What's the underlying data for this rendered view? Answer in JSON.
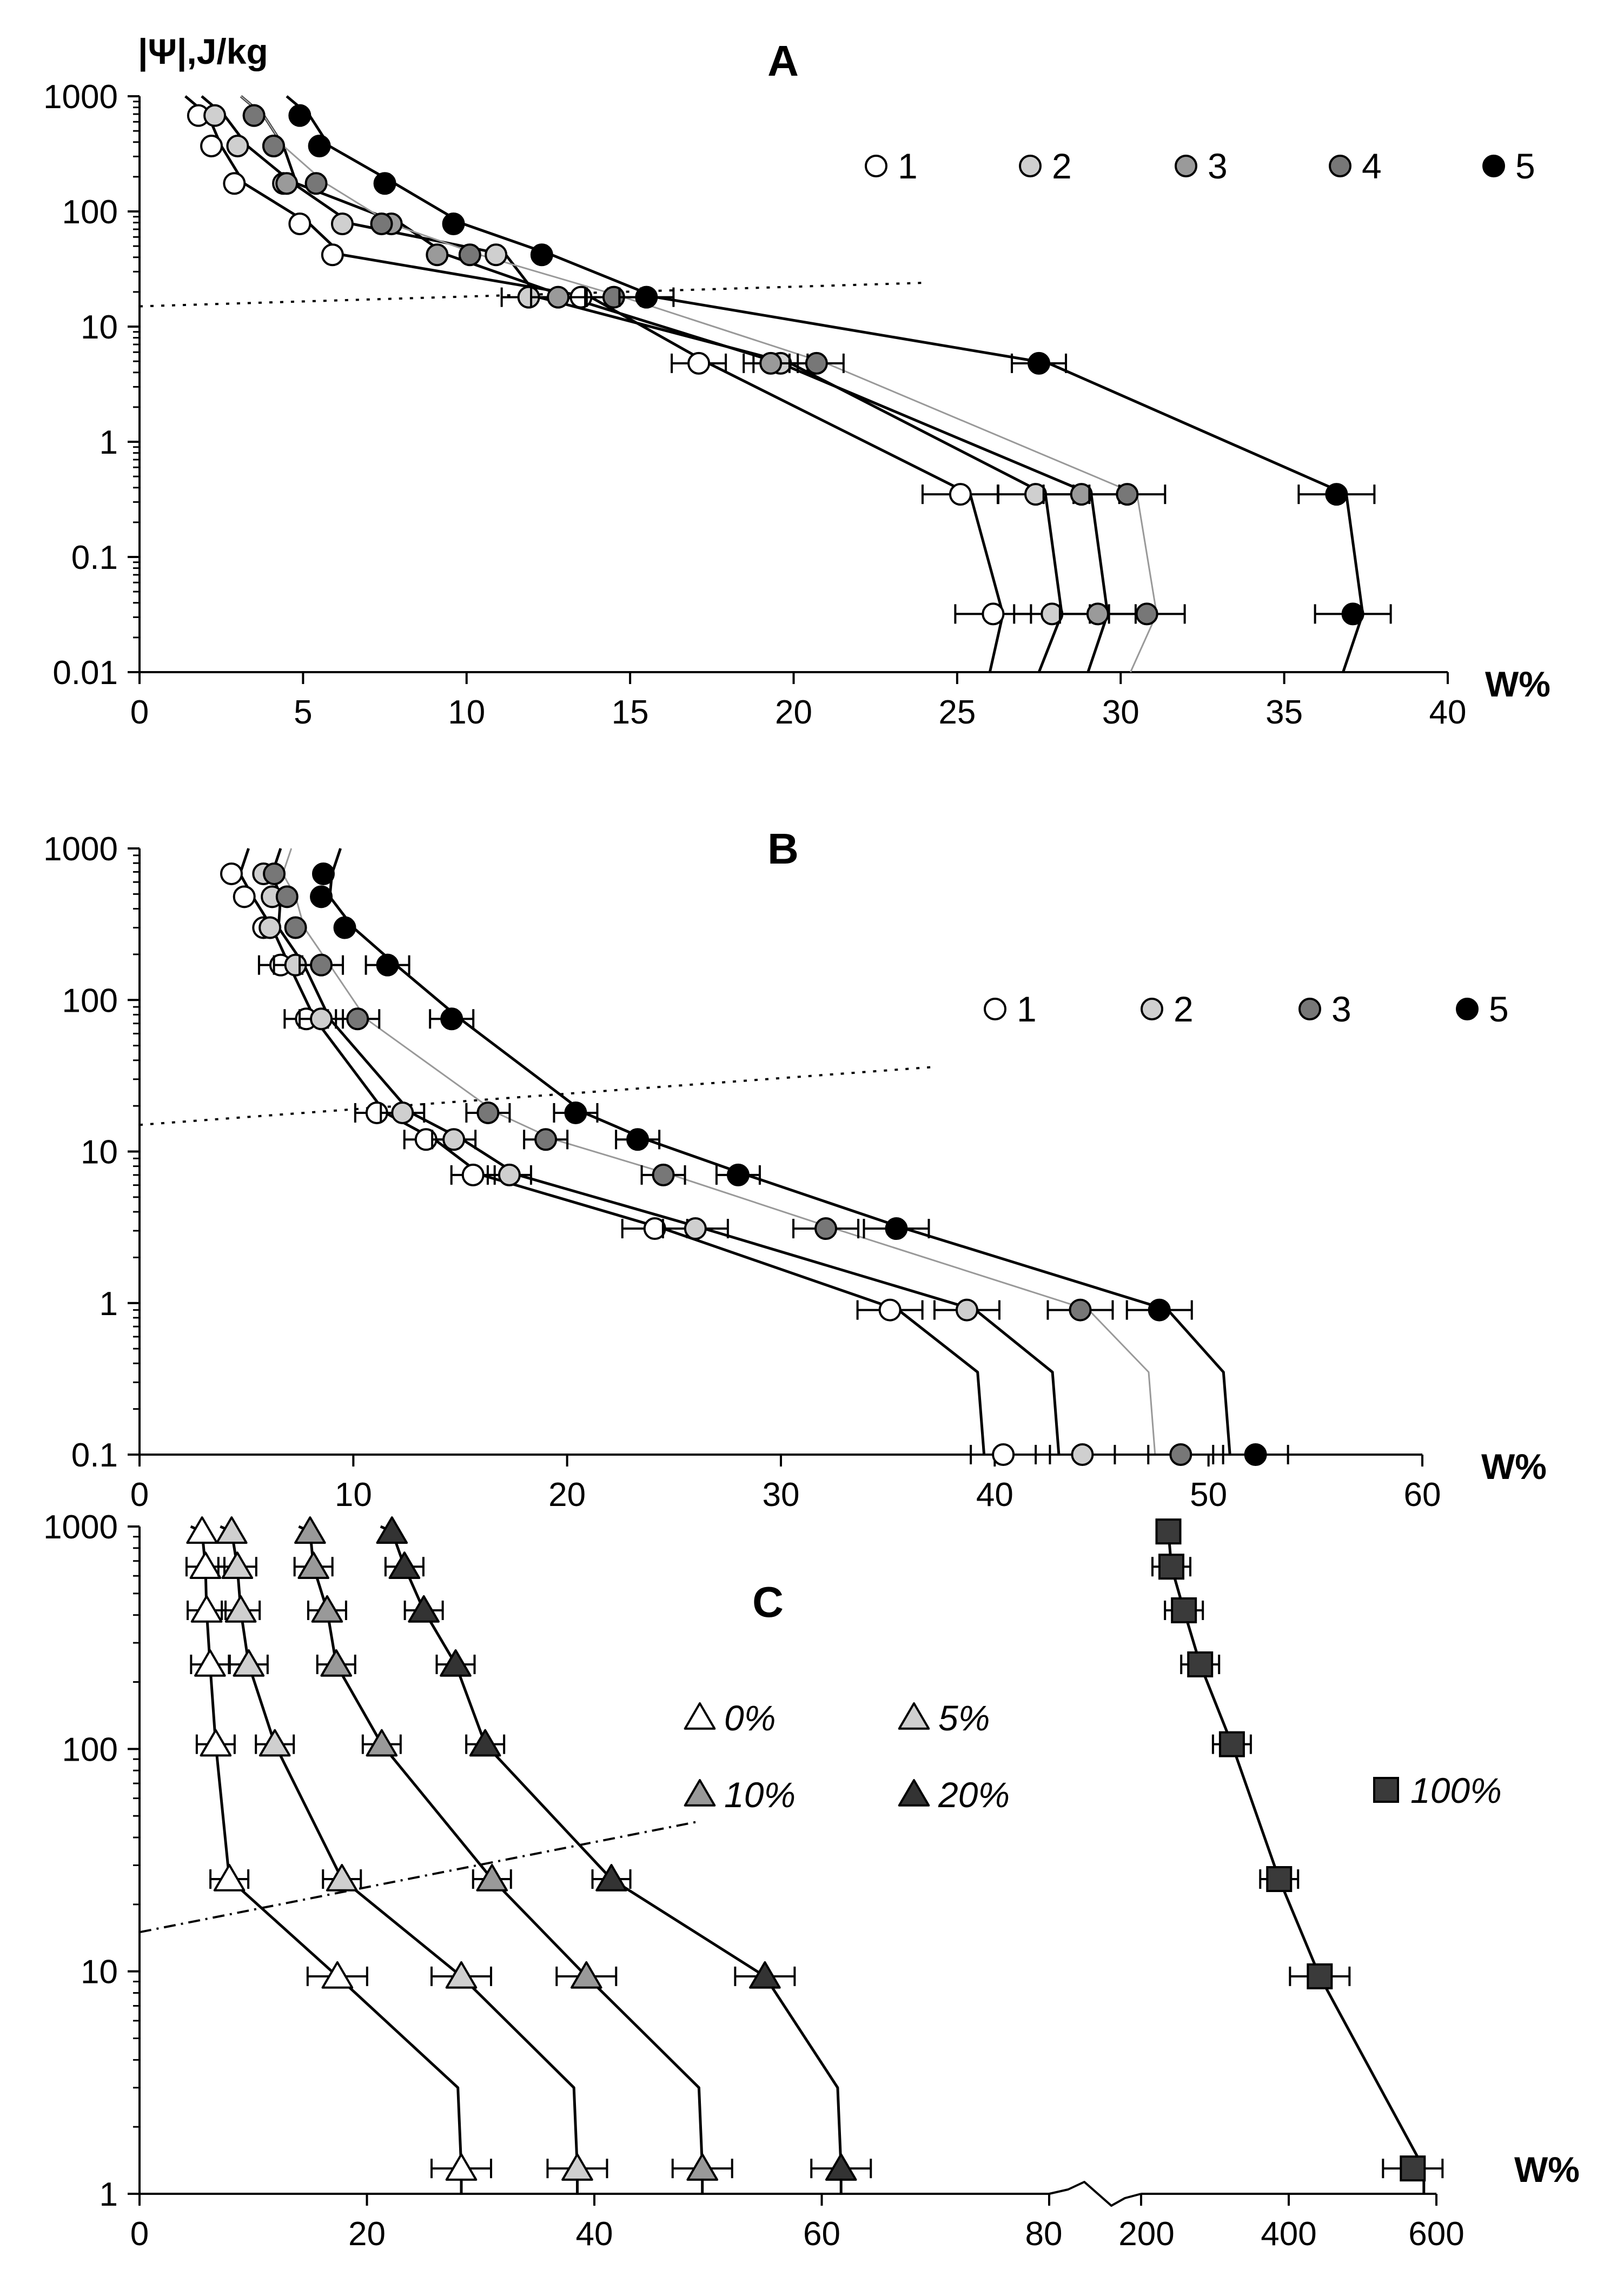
{
  "chart_data": [
    {
      "panel": "A",
      "type": "scatter",
      "title": "A",
      "ylabel": "|Ψ|,J/kg",
      "xlabel": "W%",
      "xscale": "linear",
      "yscale": "log",
      "xlim": [
        0,
        40
      ],
      "ylim": [
        0.01,
        1000
      ],
      "xticks": [
        "0",
        "5",
        "10",
        "15",
        "20",
        "25",
        "30",
        "35",
        "40"
      ],
      "yticks": [
        "0.01",
        "0.1",
        "1",
        "10",
        "100",
        "1000"
      ],
      "legend_position": "top-right",
      "series": [
        {
          "name": "1",
          "fill": "#ffffff",
          "x": [
            1.8,
            2.2,
            2.9,
            4.9,
            5.9,
            13.5,
            17.1,
            25.1,
            26.1
          ],
          "y": [
            680,
            370,
            175,
            78,
            42,
            18,
            4.8,
            0.35,
            0.032
          ]
        },
        {
          "name": "2",
          "fill": "#cfcfcf",
          "x": [
            2.3,
            3.0,
            4.4,
            6.2,
            10.9,
            11.9,
            19.6,
            27.4,
            27.9
          ],
          "y": [
            680,
            370,
            175,
            78,
            42,
            18,
            4.8,
            0.35,
            0.032
          ]
        },
        {
          "name": "3",
          "fill": "#9a9a9a",
          "x": [
            3.5,
            4.1,
            4.5,
            7.7,
            9.1,
            12.8,
            19.3,
            28.8,
            29.3
          ],
          "y": [
            680,
            370,
            175,
            78,
            42,
            18,
            4.8,
            0.35,
            0.032
          ]
        },
        {
          "name": "4",
          "fill": "#777777",
          "x": [
            3.5,
            4.1,
            5.4,
            7.4,
            10.1,
            14.5,
            20.7,
            30.2,
            30.8
          ],
          "y": [
            680,
            370,
            175,
            78,
            42,
            18,
            4.8,
            0.35,
            0.032
          ]
        },
        {
          "name": "5",
          "fill": "#000000",
          "x": [
            4.9,
            5.5,
            7.5,
            9.6,
            12.3,
            15.5,
            27.5,
            36.6,
            37.1
          ],
          "y": [
            680,
            370,
            175,
            78,
            42,
            18,
            4.8,
            0.35,
            0.032
          ]
        }
      ],
      "fitted_curves_W_at_0.01": [
        26.0,
        27.5,
        29.0,
        30.3,
        36.8
      ],
      "threshold_line": {
        "style": "dotted",
        "x": [
          0,
          24
        ],
        "y": [
          15,
          24
        ]
      }
    },
    {
      "panel": "B",
      "type": "scatter",
      "title": "B",
      "xlabel": "W%",
      "xscale": "linear",
      "yscale": "log",
      "xlim": [
        0,
        60
      ],
      "ylim": [
        0.1,
        1000
      ],
      "xticks": [
        "0",
        "10",
        "20",
        "30",
        "40",
        "50",
        "60"
      ],
      "yticks": [
        "0.1",
        "1",
        "10",
        "100",
        "1000"
      ],
      "legend_position": "top-right",
      "series": [
        {
          "name": "1",
          "fill": "#ffffff",
          "x": [
            4.3,
            4.9,
            5.8,
            6.6,
            7.8,
            11.1,
            13.4,
            15.6,
            24.1,
            35.1,
            40.4
          ],
          "y": [
            680,
            480,
            300,
            170,
            75,
            18,
            12,
            7,
            3.1,
            0.9,
            0.1
          ]
        },
        {
          "name": "2",
          "fill": "#cfcfcf",
          "x": [
            5.8,
            6.2,
            6.1,
            7.3,
            8.5,
            12.3,
            14.7,
            17.3,
            26.0,
            38.7,
            44.1
          ],
          "y": [
            680,
            480,
            300,
            170,
            75,
            18,
            12,
            7,
            3.1,
            0.9,
            0.1
          ]
        },
        {
          "name": "3",
          "fill": "#777777",
          "x": [
            6.3,
            6.9,
            7.3,
            8.5,
            10.2,
            16.3,
            19.0,
            24.5,
            32.1,
            44.0,
            48.7
          ],
          "y": [
            680,
            480,
            300,
            170,
            75,
            18,
            12,
            7,
            3.1,
            0.9,
            0.1
          ]
        },
        {
          "name": "5",
          "fill": "#000000",
          "x": [
            8.6,
            8.5,
            9.6,
            11.6,
            14.6,
            20.4,
            23.3,
            28.0,
            35.4,
            47.7,
            52.2
          ],
          "y": [
            680,
            480,
            300,
            170,
            75,
            18,
            12,
            7,
            3.1,
            0.9,
            0.1
          ]
        }
      ],
      "fitted_curves_W_at_0.1": [
        39.5,
        43.0,
        47.5,
        51.0
      ],
      "threshold_line": {
        "style": "dotted",
        "x": [
          0,
          37
        ],
        "y": [
          15,
          36
        ]
      }
    },
    {
      "panel": "C",
      "type": "scatter",
      "title": "C",
      "xlabel": "W%",
      "xscale": "linear (broken axis 0–80 | 200–600)",
      "yscale": "log",
      "xlim_left": [
        0,
        80
      ],
      "xlim_right": [
        200,
        600
      ],
      "ylim": [
        1,
        1000
      ],
      "xticks": [
        "0",
        "20",
        "40",
        "60",
        "80",
        "200",
        "400",
        "600"
      ],
      "yticks": [
        "1",
        "10",
        "100",
        "1000"
      ],
      "legend_position": "top-right",
      "series": [
        {
          "name": "0%",
          "marker": "triangle",
          "fill": "#ffffff",
          "x": [
            5.5,
            5.8,
            5.9,
            6.2,
            6.7,
            7.9,
            17.4,
            28.3
          ],
          "y": [
            950,
            660,
            420,
            240,
            105,
            26,
            9.5,
            1.3
          ]
        },
        {
          "name": "5%",
          "marker": "triangle",
          "fill": "#cfcfcf",
          "x": [
            8.1,
            8.6,
            8.9,
            9.6,
            11.9,
            17.8,
            28.3,
            38.5
          ],
          "y": [
            950,
            660,
            420,
            240,
            105,
            26,
            9.5,
            1.3
          ]
        },
        {
          "name": "10%",
          "marker": "triangle",
          "fill": "#999999",
          "x": [
            15.0,
            15.3,
            16.5,
            17.3,
            21.3,
            31.0,
            39.3,
            49.5
          ],
          "y": [
            950,
            660,
            420,
            240,
            105,
            26,
            9.5,
            1.3
          ]
        },
        {
          "name": "20%",
          "marker": "triangle",
          "fill": "#333333",
          "x": [
            22.2,
            23.3,
            25.0,
            27.8,
            30.4,
            41.5,
            55.0,
            61.7
          ],
          "y": [
            950,
            660,
            420,
            240,
            105,
            26,
            9.5,
            1.3
          ]
        },
        {
          "name": "100%",
          "marker": "square",
          "fill": "#3a3a3a",
          "x": [
            237,
            241,
            258,
            280,
            323,
            387,
            442,
            568
          ],
          "y": [
            950,
            660,
            420,
            240,
            105,
            26,
            9.5,
            1.3
          ]
        }
      ],
      "threshold_line": {
        "style": "dash-dot",
        "x": [
          0,
          49
        ],
        "y": [
          15,
          47
        ]
      }
    }
  ]
}
